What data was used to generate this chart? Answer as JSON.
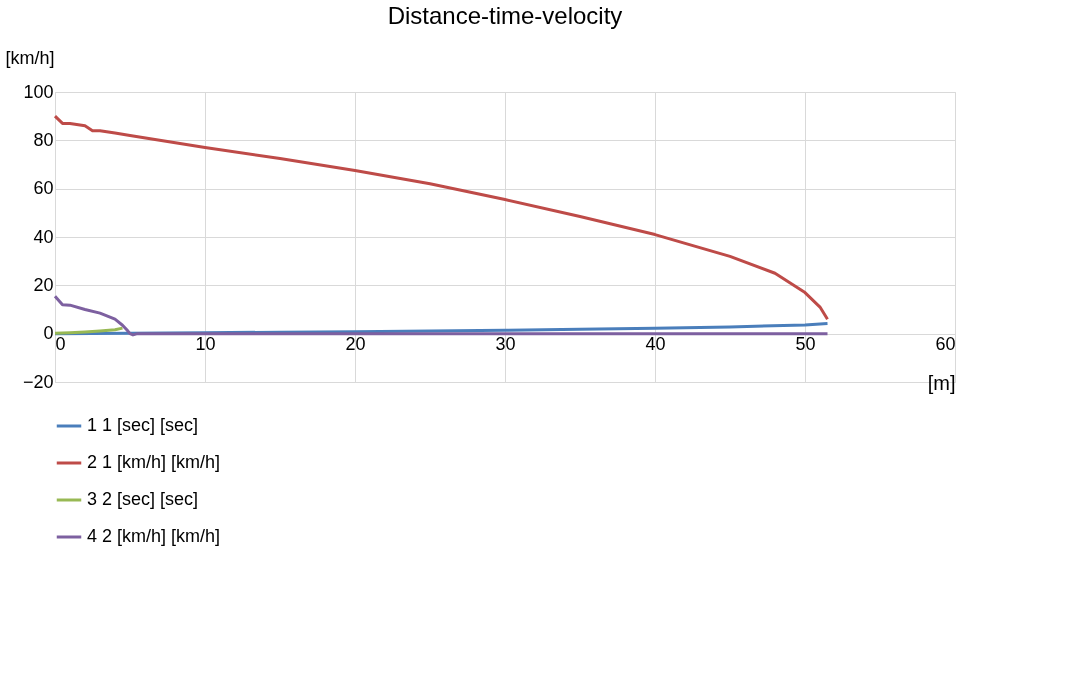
{
  "chart_data": {
    "type": "line",
    "title": "Distance-time-velocity",
    "xlabel": "[m]",
    "ylabel": "[km/h]",
    "xlim": [
      0,
      60
    ],
    "xticks": [
      0,
      10,
      20,
      30,
      40,
      50,
      60
    ],
    "ylim": [
      -20,
      100
    ],
    "yticks": [
      -20,
      0,
      20,
      40,
      60,
      80,
      100
    ],
    "grid": true,
    "legend": "bottom",
    "marker": "none",
    "line_style": "solid",
    "series": [
      {
        "name": "1 1 [sec] [sec]",
        "color": "#4a7ebb",
        "x": [
          0,
          5,
          10,
          15,
          20,
          25,
          30,
          35,
          40,
          45,
          50,
          51.5
        ],
        "values": [
          0,
          0.2,
          0.4,
          0.6,
          0.8,
          1.1,
          1.4,
          1.8,
          2.2,
          2.8,
          3.6,
          4.2
        ]
      },
      {
        "name": "2 1 [km/h] [km/h]",
        "color": "#be4b48",
        "x": [
          0,
          0.5,
          1,
          2,
          2.5,
          3,
          4,
          5,
          10,
          15,
          20,
          25,
          30,
          35,
          40,
          45,
          48,
          50,
          51,
          51.5
        ],
        "values": [
          90,
          87,
          87,
          86,
          84,
          84,
          83,
          82,
          77,
          72.5,
          67.5,
          62,
          55.5,
          48.5,
          41,
          32,
          25,
          17,
          11,
          6
        ]
      },
      {
        "name": "3 2 [sec] [sec]",
        "color": "#98b954",
        "x": [
          0,
          1,
          2,
          3,
          4,
          4.5
        ],
        "values": [
          0.2,
          0.4,
          0.7,
          1.1,
          1.6,
          2.3
        ]
      },
      {
        "name": "4 2 [km/h] [km/h]",
        "color": "#7d60a0",
        "x": [
          0,
          0.5,
          1,
          2,
          3,
          4,
          4.5,
          4.8,
          5,
          5.2,
          5.5,
          10,
          20,
          30,
          40,
          51.5
        ],
        "values": [
          15.5,
          12,
          11.8,
          10,
          8.5,
          6,
          3.5,
          1.5,
          0,
          -0.5,
          0,
          0,
          0,
          0,
          0,
          0
        ]
      }
    ]
  }
}
